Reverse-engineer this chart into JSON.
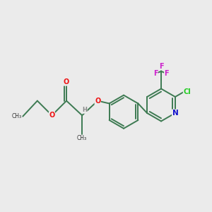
{
  "bg_color": "#ebebeb",
  "bond_color": "#3d7a52",
  "bond_width": 1.4,
  "atom_colors": {
    "O": "#ee1111",
    "N": "#1111cc",
    "Cl": "#22cc22",
    "F": "#cc22cc",
    "H": "#888888"
  },
  "font_size": 7.0,
  "figsize": [
    3.0,
    3.0
  ],
  "dpi": 100
}
